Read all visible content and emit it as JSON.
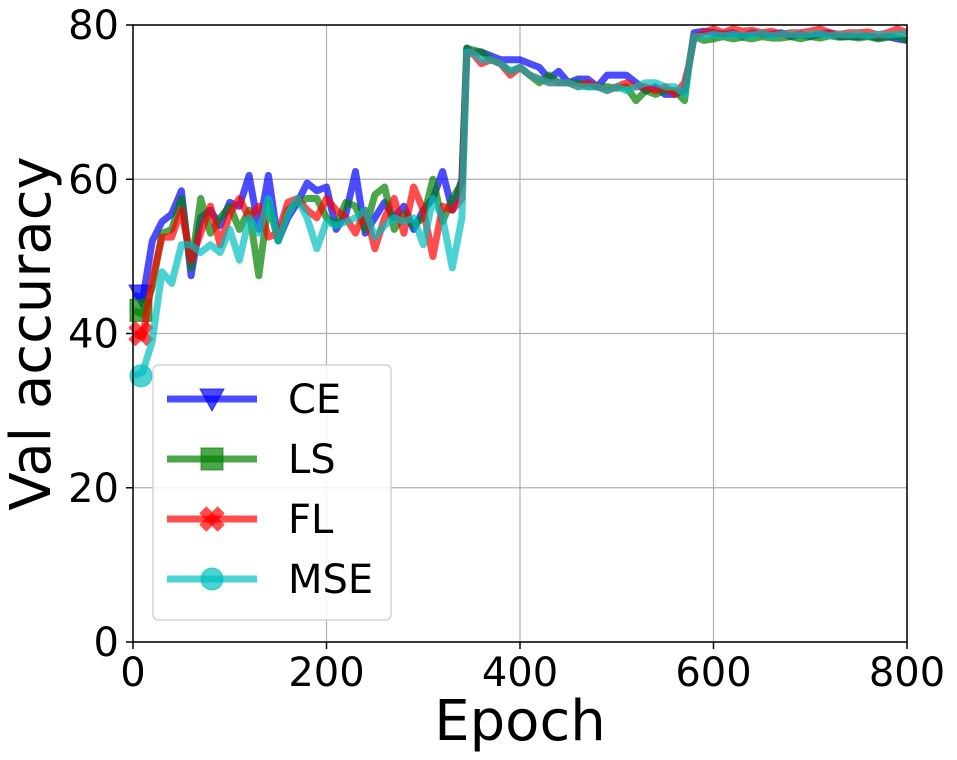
{
  "chart_data": {
    "type": "line",
    "xlabel": "Epoch",
    "ylabel": "Val accuracy",
    "xlim": [
      0,
      800
    ],
    "ylim": [
      0,
      80
    ],
    "xticks": [
      0,
      200,
      400,
      600,
      800
    ],
    "yticks": [
      0,
      20,
      40,
      60,
      80
    ],
    "grid": true,
    "legend_position": "lower-left",
    "x": [
      1,
      10,
      20,
      30,
      40,
      50,
      60,
      70,
      80,
      90,
      100,
      110,
      120,
      130,
      140,
      150,
      160,
      170,
      180,
      190,
      200,
      210,
      220,
      230,
      240,
      250,
      260,
      270,
      280,
      290,
      300,
      310,
      320,
      330,
      340,
      345,
      350,
      360,
      370,
      380,
      390,
      400,
      410,
      420,
      430,
      440,
      450,
      460,
      470,
      480,
      490,
      500,
      510,
      520,
      530,
      540,
      550,
      560,
      570,
      575,
      580,
      590,
      600,
      610,
      620,
      630,
      640,
      650,
      660,
      670,
      680,
      690,
      700,
      710,
      720,
      730,
      740,
      750,
      760,
      770,
      780,
      790,
      800
    ],
    "series": [
      {
        "name": "CE",
        "color": "#0000ff",
        "marker": "triangle-down",
        "values": [
          45,
          44.5,
          52,
          54.5,
          55.5,
          58.5,
          47.5,
          55,
          56,
          54,
          57,
          56.5,
          60.5,
          53.5,
          60.5,
          52,
          55,
          57,
          59.5,
          58.5,
          59,
          53.5,
          55.5,
          61,
          53,
          55,
          57,
          55,
          56.5,
          53.5,
          56,
          57.5,
          61,
          56,
          60,
          77,
          76.5,
          76.5,
          76,
          75.5,
          75.5,
          75.5,
          75,
          74.5,
          73,
          74,
          72.5,
          73,
          73,
          72,
          73.5,
          73.5,
          73.5,
          72.5,
          71.5,
          72,
          71,
          71,
          71.5,
          75,
          79,
          79.2,
          79,
          78.8,
          79,
          78.5,
          79,
          78.8,
          78.8,
          79,
          78.5,
          78.8,
          78.5,
          78.8,
          79,
          78.5,
          78.5,
          78.5,
          78.6,
          78.3,
          78.5,
          78.2,
          78
        ]
      },
      {
        "name": "LS",
        "color": "#008000",
        "marker": "square",
        "values": [
          43,
          42.5,
          46,
          53,
          53.5,
          57.5,
          48.5,
          57.5,
          53,
          55,
          56.5,
          53.5,
          56,
          47.5,
          57,
          52,
          56,
          57,
          57.5,
          57.5,
          55,
          54,
          57,
          56.5,
          53.5,
          58,
          59,
          53.5,
          55.5,
          54,
          55,
          60,
          54.5,
          57.5,
          59.5,
          77,
          76.8,
          76.5,
          75.5,
          75,
          74,
          74.5,
          73.5,
          72.5,
          73.5,
          72.5,
          72.5,
          72.5,
          72,
          72,
          72,
          71.8,
          72,
          70.2,
          71.5,
          71,
          71.5,
          71.5,
          70.2,
          75,
          78.5,
          78,
          78.2,
          78.5,
          78.2,
          78.4,
          78.2,
          78.5,
          78.3,
          78.3,
          78.5,
          78.2,
          78.5,
          78.3,
          78.6,
          78.4,
          78.5,
          78.3,
          78.5,
          78.2,
          78.4,
          78.5,
          78
        ]
      },
      {
        "name": "FL",
        "color": "#ff0000",
        "marker": "x-filled",
        "values": [
          40,
          39.5,
          47,
          52.5,
          52.5,
          56,
          49.5,
          53,
          56.5,
          51.5,
          55.5,
          57.5,
          55,
          56.5,
          52.5,
          53,
          57,
          57.5,
          56,
          55,
          57.5,
          56,
          55,
          53,
          56,
          51,
          55,
          57.5,
          53,
          59,
          56,
          50,
          56.5,
          56,
          57.5,
          76,
          76.5,
          75,
          75.5,
          75,
          73.5,
          74.5,
          73.5,
          73,
          72.5,
          72.5,
          72.5,
          72,
          72.5,
          72,
          71.5,
          72,
          72.5,
          72,
          72,
          71.5,
          72,
          71,
          72.5,
          75,
          78.5,
          79,
          79.5,
          79,
          79.5,
          79.2,
          79.3,
          79,
          79.2,
          78.8,
          79,
          79,
          79.2,
          79.5,
          79,
          78.8,
          79,
          79,
          79.1,
          78.7,
          79,
          79.5,
          79
        ]
      },
      {
        "name": "MSE",
        "color": "#00bfbf",
        "marker": "circle",
        "values": [
          34.5,
          35,
          39,
          48,
          46.5,
          51.5,
          51.5,
          50.5,
          51.5,
          50.5,
          53.5,
          49.5,
          55,
          53,
          57.5,
          52,
          55.5,
          57.5,
          55,
          51,
          54.5,
          54,
          54.5,
          55,
          56,
          52.5,
          54,
          55,
          54.5,
          55,
          51.5,
          57.5,
          55,
          48.5,
          55,
          76.5,
          76.5,
          75.5,
          75.5,
          75,
          74,
          74.5,
          73.5,
          73,
          72.5,
          72.5,
          72.5,
          72,
          72,
          72,
          71.5,
          72,
          71.5,
          72,
          72.5,
          72.5,
          72,
          72,
          71,
          75,
          78.5,
          78.5,
          78.8,
          78.6,
          78.8,
          78.6,
          78.7,
          78.9,
          78.6,
          78.8,
          78.8,
          78.7,
          78.8,
          78.9,
          78.6,
          78.8,
          78.7,
          78.8,
          78.6,
          78.8,
          78.7,
          78.8,
          78.9
        ]
      }
    ]
  }
}
